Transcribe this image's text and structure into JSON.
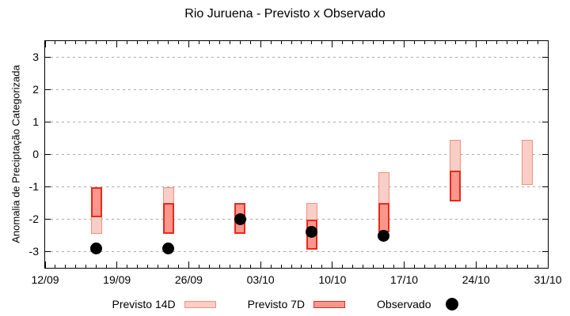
{
  "chart_data": {
    "type": "bar",
    "title": "Rio Juruena - Previsto x Observado",
    "ylabel": "Anomalia de Preciptação Categorizada",
    "xlabel": "",
    "ylim": [
      -3.5,
      3.5
    ],
    "grid": "horizontal-dotted",
    "y_axis": {
      "ticks": [
        3,
        2,
        1,
        0,
        -1,
        -2,
        -3
      ]
    },
    "x_axis": {
      "total_days": 49,
      "minor_tick_every_days": 1,
      "tick_days": [
        0,
        7,
        14,
        21,
        28,
        35,
        42,
        49
      ],
      "tick_labels": [
        "12/09",
        "19/09",
        "26/09",
        "03/10",
        "10/10",
        "17/10",
        "24/10",
        "31/10"
      ]
    },
    "bars": [
      {
        "date": "17/09",
        "day": 5,
        "previsto_14d": [
          -1.0,
          -2.45
        ],
        "previsto_7d": [
          -1.0,
          -1.95
        ],
        "observado": -2.9
      },
      {
        "date": "24/09",
        "day": 12,
        "previsto_14d": [
          -1.0,
          -2.45
        ],
        "previsto_7d": [
          -1.5,
          -2.45
        ],
        "observado": -2.9
      },
      {
        "date": "01/10",
        "day": 19,
        "previsto_14d": [
          -1.5,
          -2.45
        ],
        "previsto_7d": [
          -1.5,
          -2.45
        ],
        "observado": -2.0
      },
      {
        "date": "08/10",
        "day": 26,
        "previsto_14d": [
          -1.5,
          -2.95
        ],
        "previsto_7d": [
          -2.0,
          -2.95
        ],
        "observado": -2.4
      },
      {
        "date": "15/10",
        "day": 33,
        "previsto_14d": [
          -0.55,
          -2.4
        ],
        "previsto_7d": [
          -1.5,
          -2.4
        ],
        "observado": -2.5
      },
      {
        "date": "22/10",
        "day": 40,
        "previsto_14d": [
          0.45,
          -1.45
        ],
        "previsto_7d": [
          -0.5,
          -1.45
        ],
        "observado": null
      },
      {
        "date": "29/10",
        "day": 47,
        "previsto_14d": [
          0.45,
          -0.95
        ],
        "previsto_7d": null,
        "observado": null
      }
    ],
    "legend": {
      "position": "bottom",
      "items": [
        {
          "label": "Previsto 14D",
          "marker": "light-pink-swatch"
        },
        {
          "label": "Previsto 7D",
          "marker": "dark-red-swatch"
        },
        {
          "label": "Observado",
          "marker": "black-dot"
        }
      ]
    },
    "colors": {
      "previsto_14d_fill": "#f8cec6",
      "previsto_14d_border": "#f0917f",
      "previsto_7d_fill": "#f9978d",
      "previsto_7d_border": "#e8291a",
      "observado": "#000000",
      "grid": "#a9a9a9",
      "axis": "#000000"
    }
  }
}
